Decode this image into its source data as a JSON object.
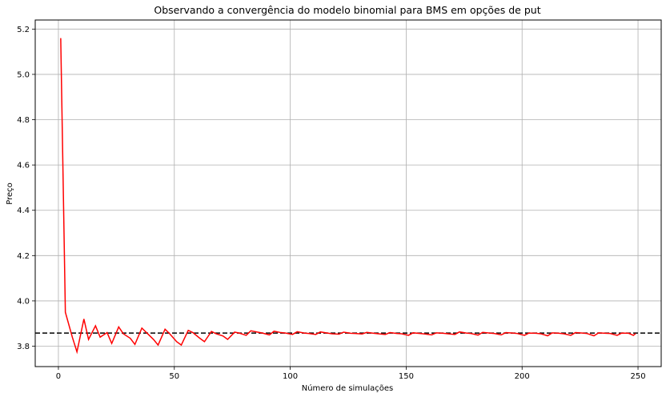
{
  "chart_data": {
    "type": "line",
    "title": "Observando a convergência do modelo binomial para BMS em opções de put",
    "xlabel": "Número de simulações",
    "ylabel": "Preço",
    "xlim": [
      -10,
      260
    ],
    "ylim": [
      3.71,
      5.24
    ],
    "xticks": [
      0,
      50,
      100,
      150,
      200,
      250
    ],
    "yticks": [
      3.8,
      4.0,
      4.2,
      4.4,
      4.6,
      4.8,
      5.0,
      5.2
    ],
    "grid": true,
    "colors": {
      "series": "#ff0000",
      "reference": "#000000",
      "grid": "#b0b0b0"
    },
    "reference_line": {
      "y": 3.858,
      "style": "dashed"
    },
    "series": [
      {
        "x": [
          1,
          3,
          6,
          8,
          11,
          13,
          16,
          18,
          21,
          23,
          26,
          28,
          31,
          33,
          36,
          38,
          41,
          43,
          46,
          48,
          51,
          53,
          56,
          58,
          61,
          63,
          66,
          68,
          71,
          73,
          76,
          78,
          81,
          83,
          86,
          88,
          91,
          93,
          96,
          98,
          101,
          103,
          106,
          108,
          111,
          113,
          116,
          118,
          121,
          123,
          126,
          128,
          131,
          133,
          136,
          138,
          141,
          143,
          146,
          148,
          151,
          153,
          156,
          158,
          161,
          163,
          166,
          168,
          171,
          173,
          176,
          178,
          181,
          183,
          186,
          188,
          191,
          193,
          196,
          198,
          201,
          203,
          206,
          208,
          211,
          213,
          216,
          218,
          221,
          223,
          226,
          228,
          231,
          233,
          236,
          238,
          241,
          243,
          246,
          248,
          249
        ],
        "y": [
          5.16,
          3.95,
          3.84,
          3.775,
          3.92,
          3.83,
          3.89,
          3.84,
          3.86,
          3.812,
          3.885,
          3.855,
          3.835,
          3.808,
          3.88,
          3.86,
          3.83,
          3.805,
          3.875,
          3.855,
          3.82,
          3.805,
          3.87,
          3.86,
          3.835,
          3.82,
          3.865,
          3.855,
          3.845,
          3.83,
          3.862,
          3.858,
          3.848,
          3.868,
          3.862,
          3.858,
          3.85,
          3.866,
          3.86,
          3.858,
          3.852,
          3.864,
          3.858,
          3.856,
          3.852,
          3.863,
          3.858,
          3.855,
          3.853,
          3.862,
          3.857,
          3.856,
          3.854,
          3.861,
          3.857,
          3.855,
          3.852,
          3.86,
          3.856,
          3.855,
          3.848,
          3.859,
          3.856,
          3.854,
          3.85,
          3.859,
          3.857,
          3.855,
          3.852,
          3.863,
          3.858,
          3.856,
          3.849,
          3.861,
          3.858,
          3.856,
          3.85,
          3.86,
          3.858,
          3.856,
          3.848,
          3.858,
          3.857,
          3.855,
          3.846,
          3.859,
          3.857,
          3.855,
          3.848,
          3.86,
          3.858,
          3.856,
          3.846,
          3.859,
          3.857,
          3.856,
          3.848,
          3.858,
          3.857,
          3.848,
          3.856
        ]
      }
    ]
  }
}
